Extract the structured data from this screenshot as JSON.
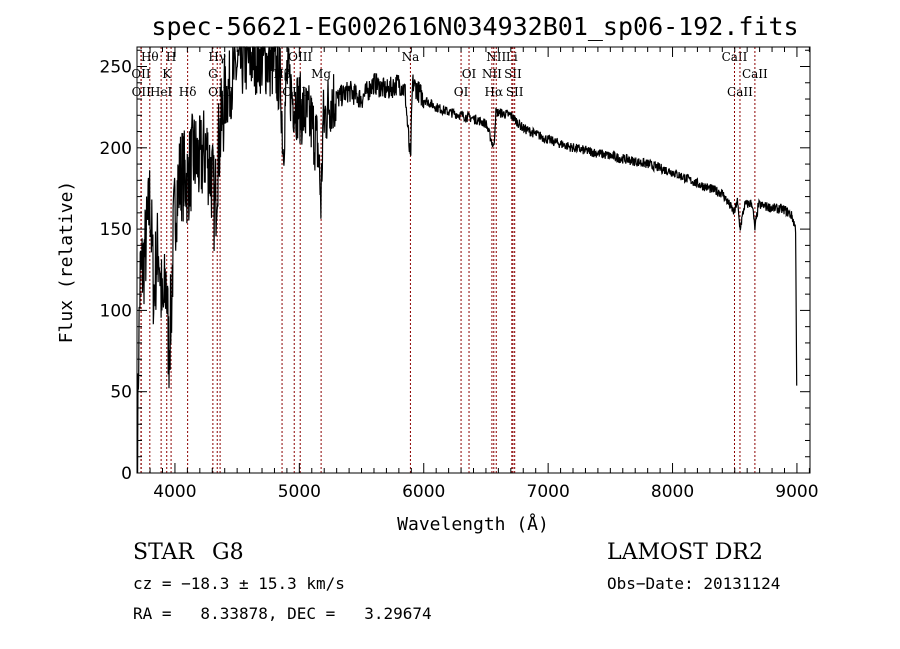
{
  "chart_data": {
    "type": "line",
    "title": "spec-56621-EG002616N034932B01_sp06-192.fits",
    "xlabel": "Wavelength (Å)",
    "ylabel": "Flux (relative)",
    "xlim": [
      3695,
      9105
    ],
    "ylim": [
      0,
      262
    ],
    "xticks": [
      4000,
      5000,
      6000,
      7000,
      8000,
      9000
    ],
    "yticks": [
      0,
      50,
      100,
      150,
      200,
      250
    ],
    "grid": false,
    "series": [
      {
        "name": "spectrum",
        "x": [
          3700,
          3705,
          3720,
          3750,
          3780,
          3800,
          3830,
          3850,
          3870,
          3900,
          3930,
          3950,
          3970,
          3990,
          4010,
          4050,
          4100,
          4150,
          4200,
          4250,
          4300,
          4320,
          4350,
          4400,
          4450,
          4500,
          4600,
          4700,
          4800,
          4850,
          4870,
          4900,
          4950,
          5000,
          5050,
          5100,
          5150,
          5175,
          5190,
          5250,
          5300,
          5400,
          5500,
          5600,
          5700,
          5800,
          5850,
          5893,
          5910,
          6000,
          6100,
          6200,
          6300,
          6400,
          6500,
          6563,
          6580,
          6700,
          6800,
          7000,
          7200,
          7500,
          7800,
          8000,
          8200,
          8400,
          8498,
          8520,
          8542,
          8580,
          8640,
          8662,
          8690,
          8800,
          8900,
          8960,
          8990,
          9000
        ],
        "y": [
          0,
          60,
          120,
          130,
          150,
          170,
          110,
          130,
          140,
          95,
          120,
          75,
          100,
          150,
          170,
          185,
          180,
          195,
          190,
          200,
          180,
          160,
          200,
          230,
          240,
          250,
          255,
          255,
          250,
          240,
          200,
          245,
          230,
          225,
          220,
          215,
          200,
          165,
          215,
          230,
          230,
          235,
          230,
          240,
          235,
          240,
          235,
          190,
          240,
          230,
          225,
          222,
          220,
          218,
          215,
          200,
          222,
          220,
          212,
          205,
          200,
          195,
          190,
          185,
          178,
          172,
          160,
          168,
          150,
          165,
          166,
          150,
          165,
          163,
          162,
          158,
          150,
          30
        ]
      }
    ],
    "lines": [
      {
        "name": "Hθ",
        "wl": 3798,
        "row": 1
      },
      {
        "name": "H",
        "wl": 3969,
        "row": 1
      },
      {
        "name": "Hγ",
        "wl": 4340,
        "row": 1
      },
      {
        "name": "OIII",
        "wl": 5007,
        "row": 1
      },
      {
        "name": "Na",
        "wl": 5893,
        "row": 1
      },
      {
        "name": "NII",
        "wl": 6583,
        "row": 1
      },
      {
        "name": "Li",
        "wl": 6708,
        "row": 1
      },
      {
        "name": "CaII",
        "wl": 8498,
        "row": 1
      },
      {
        "name": "OII",
        "wl": 3727,
        "row": 2
      },
      {
        "name": "K",
        "wl": 3934,
        "row": 2
      },
      {
        "name": "G",
        "wl": 4305,
        "row": 2
      },
      {
        "name": "Hβ",
        "wl": 4861,
        "row": 2
      },
      {
        "name": "Mg",
        "wl": 5175,
        "row": 2
      },
      {
        "name": "OI",
        "wl": 6364,
        "row": 2
      },
      {
        "name": "NII",
        "wl": 6548,
        "row": 2
      },
      {
        "name": "SII",
        "wl": 6717,
        "row": 2
      },
      {
        "name": "CaII",
        "wl": 8662,
        "row": 2
      },
      {
        "name": "OII",
        "wl": 3729,
        "row": 3
      },
      {
        "name": "HeI",
        "wl": 3889,
        "row": 3
      },
      {
        "name": "Hδ",
        "wl": 4102,
        "row": 3
      },
      {
        "name": "OIII",
        "wl": 4363,
        "row": 3
      },
      {
        "name": "OIII",
        "wl": 4959,
        "row": 3
      },
      {
        "name": "OI",
        "wl": 6300,
        "row": 3
      },
      {
        "name": "Hα",
        "wl": 6563,
        "row": 3
      },
      {
        "name": "SII",
        "wl": 6731,
        "row": 3
      },
      {
        "name": "CaII",
        "wl": 8542,
        "row": 3
      }
    ]
  },
  "info": {
    "class": "STAR",
    "subclass": "G8",
    "cz": "cz = −18.3 ± 15.3 km/s",
    "radec": "RA =   8.33878, DEC =   3.29674",
    "survey": "LAMOST DR2",
    "obsdate": "Obs−Date: 20131124"
  },
  "colors": {
    "line_marker": "#8b0000",
    "spectrum": "#000000"
  }
}
